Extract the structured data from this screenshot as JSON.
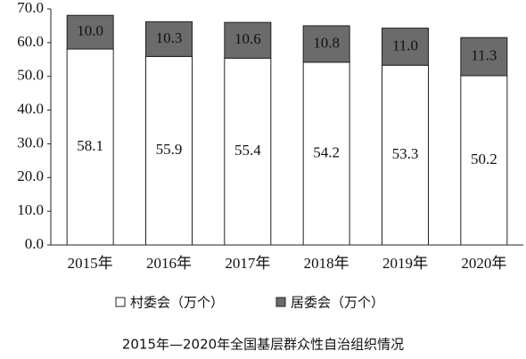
{
  "chart_data": {
    "type": "stacked_bar",
    "title": "2015年—2020年全国基层群众性自治组织情况",
    "categories": [
      "2015年",
      "2016年",
      "2017年",
      "2018年",
      "2019年",
      "2020年"
    ],
    "series": [
      {
        "name": "村委会（万个）",
        "color": "#ffffff",
        "values": [
          58.1,
          55.9,
          55.4,
          54.2,
          53.3,
          50.2
        ]
      },
      {
        "name": "居委会（万个）",
        "color": "#6b6b6b",
        "values": [
          10,
          10.3,
          10.6,
          10.8,
          11,
          11.3
        ],
        "value_labels": [
          "10.0",
          "10.3",
          "10.6",
          "10.8",
          "11.0",
          "11.3"
        ]
      }
    ],
    "ylim": [
      0,
      70
    ],
    "yticks": [
      {
        "value": 0,
        "label": "0.0"
      },
      {
        "value": 10,
        "label": "10.0"
      },
      {
        "value": 20,
        "label": "20.0"
      },
      {
        "value": 30,
        "label": "30.0"
      },
      {
        "value": 40,
        "label": "40.0"
      },
      {
        "value": 50,
        "label": "50.0"
      },
      {
        "value": 60,
        "label": "60.0"
      },
      {
        "value": 70,
        "label": "70.0"
      }
    ],
    "grid": false,
    "legend": "bottom"
  }
}
